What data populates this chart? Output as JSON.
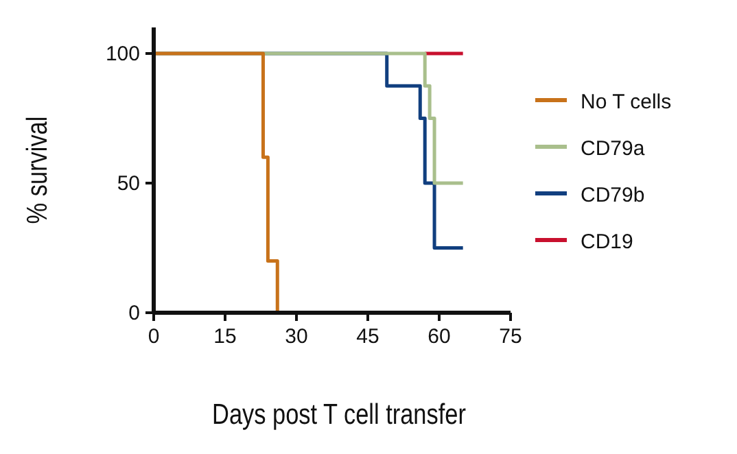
{
  "chart_data": {
    "type": "step",
    "xlabel": "Days post T cell transfer",
    "ylabel": "% survival",
    "xlim": [
      0,
      75
    ],
    "xticks": [
      0,
      15,
      30,
      45,
      60,
      75
    ],
    "ylim": [
      0,
      100
    ],
    "yticks": [
      0,
      50,
      100
    ],
    "grid": false,
    "legend": "right",
    "series": [
      {
        "name": "No T cells",
        "color": "#c8721a",
        "x": [
          0,
          23,
          24,
          26
        ],
        "values": [
          100,
          60,
          20,
          0
        ]
      },
      {
        "name": "CD79a",
        "color": "#a9bf8c",
        "x": [
          0,
          57,
          58,
          59,
          65
        ],
        "values": [
          100,
          87.5,
          75,
          50,
          50
        ]
      },
      {
        "name": "CD79b",
        "color": "#113f7f",
        "x": [
          0,
          49,
          56,
          57,
          59,
          65
        ],
        "values": [
          100,
          87.5,
          75,
          50,
          25,
          25
        ]
      },
      {
        "name": "CD19",
        "color": "#c8102e",
        "x": [
          57,
          65
        ],
        "values": [
          100,
          100
        ]
      }
    ]
  }
}
